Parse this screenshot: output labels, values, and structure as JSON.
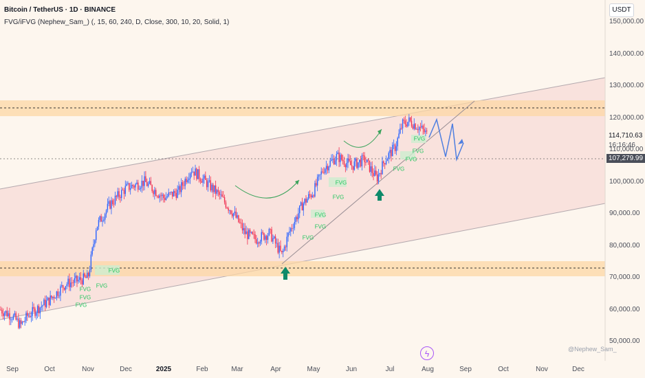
{
  "header": {
    "title": "Bitcoin / TetherUS · 1D · BINANCE",
    "indicator": "FVG/iFVG (Nephew_Sam_) (, 15, 60, 240, D, Close, 300, 10, 20, Solid, 1)"
  },
  "currency": "USDT",
  "price_labels": {
    "last": "114,710.63",
    "countdown": "16:16:46",
    "line": "107,279.99"
  },
  "fvg_label": "FVG",
  "watermark": "@Nephew_Sam_",
  "colors": {
    "up": "#2962ff",
    "down": "#ef2b4e",
    "channel": "#f6dfd8",
    "zone": "#fcd7a4",
    "fvg": "#22c55e",
    "arrow": "#0e8a6a"
  },
  "chart_data": {
    "type": "candlestick",
    "symbol": "Bitcoin / TetherUS",
    "interval": "1D",
    "exchange": "BINANCE",
    "x_ticks": [
      "Sep",
      "Oct",
      "Nov",
      "Dec",
      "2025",
      "Feb",
      "Mar",
      "Apr",
      "May",
      "Jun",
      "Jul",
      "Aug",
      "Sep",
      "Oct",
      "Nov",
      "Dec"
    ],
    "y_ticks": [
      "50,000.00",
      "60,000.00",
      "70,000.00",
      "80,000.00",
      "90,000.00",
      "100,000.00",
      "110,000.00",
      "120,000.00",
      "130,000.00",
      "140,000.00",
      "150,000.00"
    ],
    "ylim": [
      48000,
      152000
    ],
    "current_price": 114710.63,
    "line_price": 107279.99,
    "resistance_zone": [
      121000,
      125000
    ],
    "support_zone": [
      72000,
      75500
    ],
    "close_anchors": [
      [
        "Sep",
        59000
      ],
      [
        "Oct",
        64000
      ],
      [
        "Nov",
        69000
      ],
      [
        "Dec",
        96000
      ],
      [
        "2025",
        94000
      ],
      [
        "Feb",
        101000
      ],
      [
        "Mar",
        87000
      ],
      [
        "Apr",
        82000
      ],
      [
        "May",
        95000
      ],
      [
        "Jun",
        105000
      ],
      [
        "Jul",
        108000
      ],
      [
        "Aug",
        114700
      ]
    ]
  }
}
